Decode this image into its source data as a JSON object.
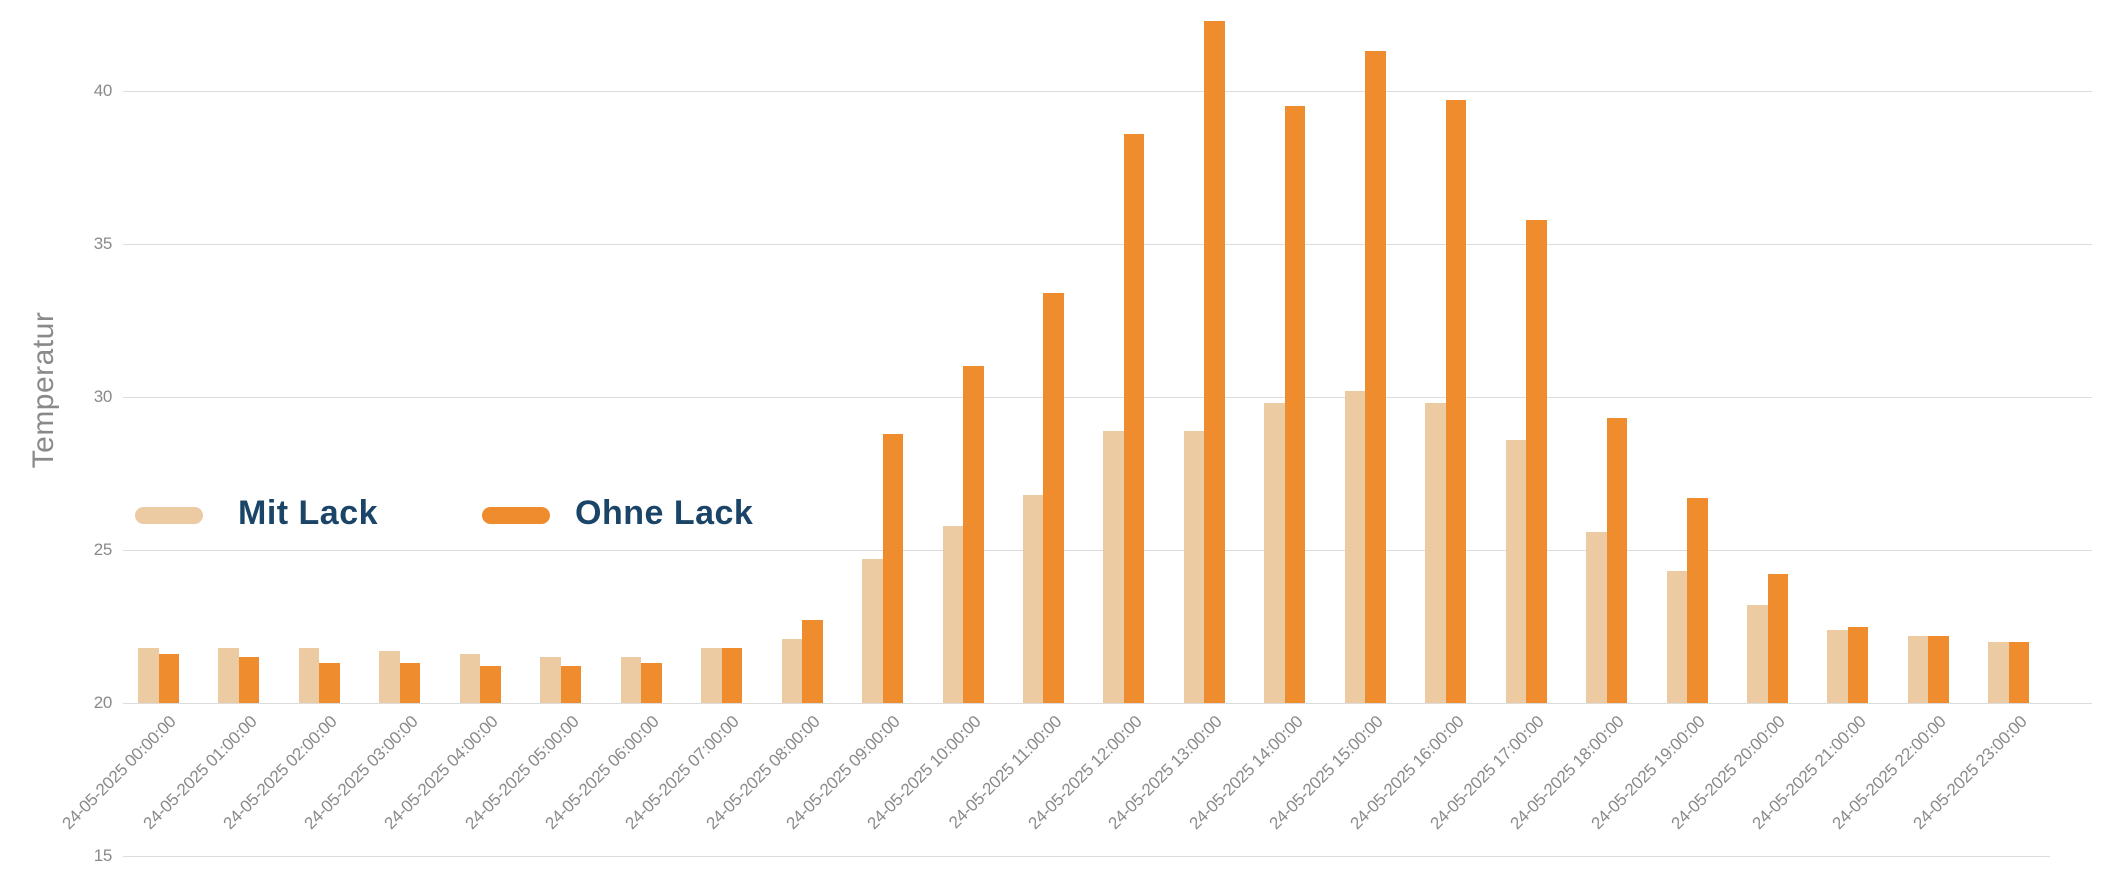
{
  "colors": {
    "background": "#ffffff",
    "gridline": "#dcdcdc",
    "axis_text": "#8a8a8a",
    "legend_text": "#1b4568",
    "mit_lack": "#eccaa2",
    "ohne_lack": "#ee8c2e"
  },
  "legend": {
    "items": [
      {
        "label": "Mit Lack",
        "color": "#eccaa2"
      },
      {
        "label": "Ohne Lack",
        "color": "#ee8c2e"
      }
    ]
  },
  "chart_data": {
    "type": "bar",
    "title": "",
    "xlabel": "",
    "ylabel": "Temperatur",
    "grid": true,
    "legend_position": "middle-left",
    "bar_baseline": 20,
    "ylim": [
      15,
      42.5
    ],
    "yticks": [
      15,
      20,
      25,
      30,
      35,
      40
    ],
    "categories": [
      "24-05-2025 00:00:00",
      "24-05-2025 01:00:00",
      "24-05-2025 02:00:00",
      "24-05-2025 03:00:00",
      "24-05-2025 04:00:00",
      "24-05-2025 05:00:00",
      "24-05-2025 06:00:00",
      "24-05-2025 07:00:00",
      "24-05-2025 08:00:00",
      "24-05-2025 09:00:00",
      "24-05-2025 10:00:00",
      "24-05-2025 11:00:00",
      "24-05-2025 12:00:00",
      "24-05-2025 13:00:00",
      "24-05-2025 14:00:00",
      "24-05-2025 15:00:00",
      "24-05-2025 16:00:00",
      "24-05-2025 17:00:00",
      "24-05-2025 18:00:00",
      "24-05-2025 19:00:00",
      "24-05-2025 20:00:00",
      "24-05-2025 21:00:00",
      "24-05-2025 22:00:00",
      "24-05-2025 23:00:00"
    ],
    "series": [
      {
        "name": "Mit Lack",
        "color": "#eccaa2",
        "values": [
          21.8,
          21.8,
          21.8,
          21.7,
          21.6,
          21.5,
          21.5,
          21.8,
          22.1,
          24.7,
          25.8,
          26.8,
          28.9,
          28.9,
          29.8,
          30.2,
          29.8,
          28.6,
          25.6,
          24.3,
          23.2,
          22.4,
          22.2,
          22.0
        ]
      },
      {
        "name": "Ohne Lack",
        "color": "#ee8c2e",
        "values": [
          21.6,
          21.5,
          21.3,
          21.3,
          21.2,
          21.2,
          21.3,
          21.8,
          22.7,
          28.8,
          31.0,
          33.4,
          38.6,
          42.3,
          39.5,
          41.3,
          39.7,
          35.8,
          29.3,
          26.7,
          24.2,
          22.5,
          22.2,
          22.0
        ]
      }
    ]
  }
}
